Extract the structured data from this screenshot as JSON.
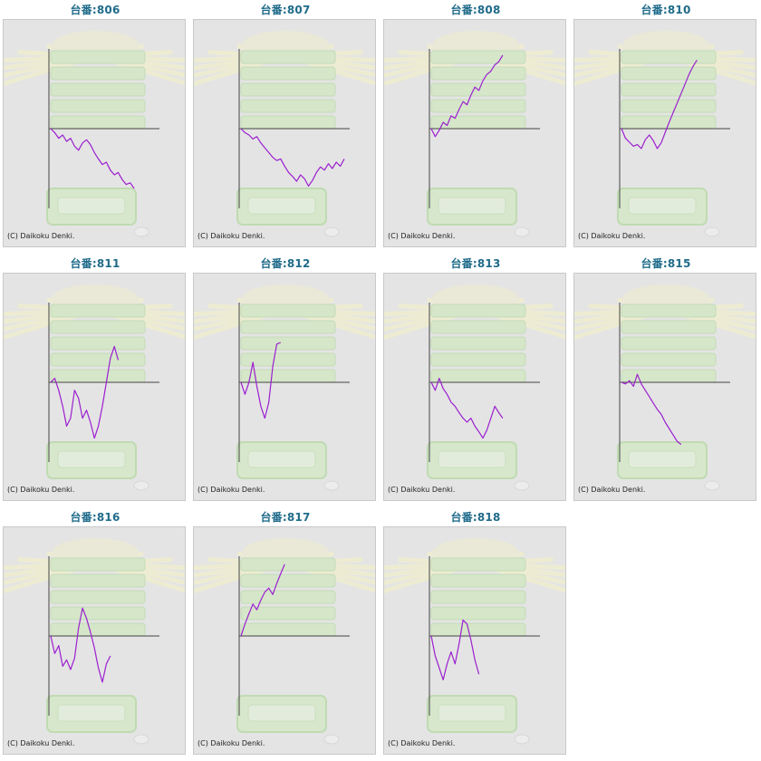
{
  "copyright": "(C) Daikoku Denki.",
  "colors": {
    "line": "#9b1fcf",
    "axis": "#444444",
    "title": "#1f6b8a",
    "background": "#e4e4e4"
  },
  "chart_data": [
    {
      "type": "line",
      "title": "台番:806",
      "ylim": [
        -1,
        1
      ],
      "values": [
        0,
        -0.05,
        -0.12,
        -0.08,
        -0.16,
        -0.12,
        -0.22,
        -0.27,
        -0.18,
        -0.14,
        -0.2,
        -0.3,
        -0.38,
        -0.45,
        -0.42,
        -0.52,
        -0.58,
        -0.55,
        -0.64,
        -0.7,
        -0.68,
        -0.75
      ]
    },
    {
      "type": "line",
      "title": "台番:807",
      "ylim": [
        -1,
        1
      ],
      "values": [
        0,
        -0.05,
        -0.08,
        -0.13,
        -0.1,
        -0.18,
        -0.24,
        -0.3,
        -0.36,
        -0.4,
        -0.38,
        -0.47,
        -0.55,
        -0.6,
        -0.66,
        -0.58,
        -0.63,
        -0.72,
        -0.65,
        -0.55,
        -0.48,
        -0.52,
        -0.44,
        -0.5,
        -0.42,
        -0.47,
        -0.38
      ]
    },
    {
      "type": "line",
      "title": "台番:808",
      "ylim": [
        -1,
        1
      ],
      "values": [
        0,
        -0.1,
        -0.02,
        0.08,
        0.04,
        0.16,
        0.13,
        0.24,
        0.34,
        0.3,
        0.42,
        0.52,
        0.48,
        0.6,
        0.68,
        0.72,
        0.8,
        0.84,
        0.92
      ]
    },
    {
      "type": "line",
      "title": "台番:810",
      "ylim": [
        -1,
        1
      ],
      "values": [
        0,
        -0.12,
        -0.17,
        -0.22,
        -0.2,
        -0.25,
        -0.14,
        -0.08,
        -0.15,
        -0.25,
        -0.18,
        -0.05,
        0.08,
        0.2,
        0.32,
        0.44,
        0.56,
        0.68,
        0.78,
        0.86
      ]
    },
    {
      "type": "line",
      "title": "台番:811",
      "ylim": [
        -1,
        1
      ],
      "values": [
        0,
        0.05,
        -0.1,
        -0.3,
        -0.55,
        -0.45,
        -0.1,
        -0.2,
        -0.45,
        -0.35,
        -0.5,
        -0.7,
        -0.55,
        -0.3,
        0,
        0.3,
        0.45,
        0.28
      ]
    },
    {
      "type": "line",
      "title": "台番:812",
      "ylim": [
        -1,
        1
      ],
      "values": [
        0,
        -0.15,
        0,
        0.25,
        -0.05,
        -0.3,
        -0.45,
        -0.25,
        0.2,
        0.48,
        0.5
      ]
    },
    {
      "type": "line",
      "title": "台番:813",
      "ylim": [
        -1,
        1
      ],
      "values": [
        0,
        -0.1,
        0.05,
        -0.08,
        -0.15,
        -0.25,
        -0.3,
        -0.38,
        -0.45,
        -0.5,
        -0.45,
        -0.55,
        -0.62,
        -0.7,
        -0.6,
        -0.45,
        -0.3,
        -0.38,
        -0.45
      ]
    },
    {
      "type": "line",
      "title": "台番:815",
      "ylim": [
        -1,
        1
      ],
      "values": [
        0,
        -0.02,
        0.02,
        -0.05,
        0.1,
        -0.02,
        -0.1,
        -0.18,
        -0.26,
        -0.34,
        -0.4,
        -0.5,
        -0.58,
        -0.66,
        -0.74,
        -0.78
      ]
    },
    {
      "type": "line",
      "title": "台番:816",
      "ylim": [
        -1,
        1
      ],
      "values": [
        0,
        -0.22,
        -0.12,
        -0.38,
        -0.3,
        -0.42,
        -0.28,
        0.1,
        0.35,
        0.22,
        0.05,
        -0.15,
        -0.4,
        -0.58,
        -0.35,
        -0.25
      ]
    },
    {
      "type": "line",
      "title": "台番:817",
      "ylim": [
        -1,
        1
      ],
      "values": [
        0,
        0.15,
        0.28,
        0.4,
        0.33,
        0.45,
        0.55,
        0.6,
        0.52,
        0.66,
        0.78,
        0.9
      ]
    },
    {
      "type": "line",
      "title": "台番:818",
      "ylim": [
        -1,
        1
      ],
      "values": [
        0,
        -0.25,
        -0.4,
        -0.55,
        -0.35,
        -0.2,
        -0.35,
        -0.1,
        0.2,
        0.15,
        -0.05,
        -0.3,
        -0.48
      ]
    }
  ]
}
